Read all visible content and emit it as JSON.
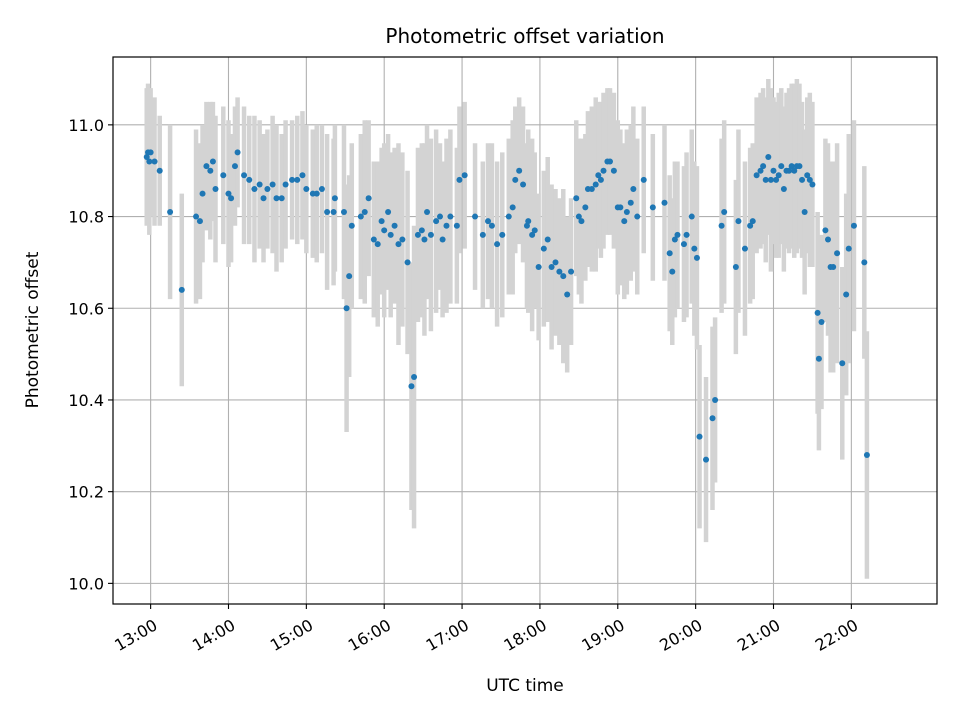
{
  "chart_data": {
    "type": "scatter",
    "title": "Photometric offset variation",
    "xlabel": "UTC time",
    "ylabel": "Photometric offset",
    "grid": true,
    "xlim": [
      "12:31",
      "23:06"
    ],
    "ylim": [
      9.955,
      11.148
    ],
    "x_ticks": [
      "13:00",
      "14:00",
      "15:00",
      "16:00",
      "17:00",
      "18:00",
      "19:00",
      "20:00",
      "21:00",
      "22:00"
    ],
    "y_ticks": [
      "10.0",
      "10.2",
      "10.4",
      "10.6",
      "10.8",
      "11.0"
    ],
    "colors": {
      "points": "#1f77b4",
      "errorbars": "#d3d3d3",
      "grid": "#b0b0b0"
    },
    "series": [
      {
        "points": [
          [
            "12:57",
            10.93,
            0.15
          ],
          [
            "12:58",
            10.94,
            0.15
          ],
          [
            "12:59",
            10.92,
            0.16
          ],
          [
            "13:00",
            10.94,
            0.14
          ],
          [
            "13:03",
            10.92,
            0.14
          ],
          [
            "13:07",
            10.9,
            0.12
          ],
          [
            "13:15",
            10.81,
            0.19
          ],
          [
            "13:24",
            10.64,
            0.21
          ],
          [
            "13:35",
            10.8,
            0.19
          ],
          [
            "13:38",
            10.79,
            0.17
          ],
          [
            "13:40",
            10.85,
            0.15
          ],
          [
            "13:43",
            10.91,
            0.14
          ],
          [
            "13:46",
            10.9,
            0.15
          ],
          [
            "13:48",
            10.92,
            0.13
          ],
          [
            "13:50",
            10.86,
            0.16
          ],
          [
            "13:56",
            10.89,
            0.15
          ],
          [
            "14:00",
            10.85,
            0.16
          ],
          [
            "14:02",
            10.84,
            0.14
          ],
          [
            "14:05",
            10.91,
            0.13
          ],
          [
            "14:07",
            10.94,
            0.12
          ],
          [
            "14:12",
            10.89,
            0.15
          ],
          [
            "14:16",
            10.88,
            0.14
          ],
          [
            "14:20",
            10.86,
            0.16
          ],
          [
            "14:24",
            10.87,
            0.14
          ],
          [
            "14:27",
            10.84,
            0.14
          ],
          [
            "14:30",
            10.86,
            0.13
          ],
          [
            "14:34",
            10.87,
            0.15
          ],
          [
            "14:37",
            10.84,
            0.16
          ],
          [
            "14:41",
            10.84,
            0.14
          ],
          [
            "14:44",
            10.87,
            0.14
          ],
          [
            "14:49",
            10.88,
            0.13
          ],
          [
            "14:53",
            10.88,
            0.14
          ],
          [
            "14:57",
            10.89,
            0.14
          ],
          [
            "15:00",
            10.86,
            0.14
          ],
          [
            "15:05",
            10.85,
            0.14
          ],
          [
            "15:08",
            10.85,
            0.15
          ],
          [
            "15:12",
            10.86,
            0.14
          ],
          [
            "15:16",
            10.81,
            0.17
          ],
          [
            "15:21",
            10.81,
            0.16
          ],
          [
            "15:22",
            10.84,
            0.16
          ],
          [
            "15:29",
            10.81,
            0.19
          ],
          [
            "15:31",
            10.6,
            0.27
          ],
          [
            "15:33",
            10.67,
            0.22
          ],
          [
            "15:35",
            10.78,
            0.18
          ],
          [
            "15:42",
            10.8,
            0.18
          ],
          [
            "15:45",
            10.81,
            0.2
          ],
          [
            "15:48",
            10.84,
            0.17
          ],
          [
            "15:52",
            10.75,
            0.17
          ],
          [
            "15:55",
            10.74,
            0.18
          ],
          [
            "15:58",
            10.79,
            0.16
          ],
          [
            "16:00",
            10.77,
            0.19
          ],
          [
            "16:03",
            10.81,
            0.17
          ],
          [
            "16:05",
            10.76,
            0.18
          ],
          [
            "16:08",
            10.78,
            0.17
          ],
          [
            "16:11",
            10.74,
            0.22
          ],
          [
            "16:14",
            10.75,
            0.19
          ],
          [
            "16:18",
            10.7,
            0.2
          ],
          [
            "16:21",
            10.43,
            0.27
          ],
          [
            "16:23",
            10.45,
            0.33
          ],
          [
            "16:26",
            10.76,
            0.19
          ],
          [
            "16:29",
            10.77,
            0.19
          ],
          [
            "16:31",
            10.75,
            0.21
          ],
          [
            "16:33",
            10.81,
            0.19
          ],
          [
            "16:36",
            10.76,
            0.21
          ],
          [
            "16:40",
            10.79,
            0.2
          ],
          [
            "16:43",
            10.8,
            0.16
          ],
          [
            "16:45",
            10.75,
            0.17
          ],
          [
            "16:48",
            10.78,
            0.19
          ],
          [
            "16:51",
            10.8,
            0.19
          ],
          [
            "16:56",
            10.78,
            0.17
          ],
          [
            "16:58",
            10.88,
            0.16
          ],
          [
            "17:02",
            10.89,
            0.16
          ],
          [
            "17:10",
            10.8,
            0.16
          ],
          [
            "17:16",
            10.76,
            0.16
          ],
          [
            "17:20",
            10.79,
            0.17
          ],
          [
            "17:23",
            10.78,
            0.18
          ],
          [
            "17:27",
            10.74,
            0.18
          ],
          [
            "17:31",
            10.76,
            0.18
          ],
          [
            "17:36",
            10.8,
            0.17
          ],
          [
            "17:39",
            10.82,
            0.19
          ],
          [
            "17:41",
            10.88,
            0.16
          ],
          [
            "17:44",
            10.9,
            0.16
          ],
          [
            "17:47",
            10.87,
            0.17
          ],
          [
            "17:50",
            10.78,
            0.18
          ],
          [
            "17:51",
            10.79,
            0.2
          ],
          [
            "17:54",
            10.76,
            0.21
          ],
          [
            "17:56",
            10.77,
            0.17
          ],
          [
            "17:59",
            10.69,
            0.16
          ],
          [
            "18:03",
            10.73,
            0.17
          ],
          [
            "18:06",
            10.75,
            0.18
          ],
          [
            "18:09",
            10.69,
            0.18
          ],
          [
            "18:12",
            10.7,
            0.16
          ],
          [
            "18:15",
            10.68,
            0.16
          ],
          [
            "18:18",
            10.67,
            0.19
          ],
          [
            "18:21",
            10.63,
            0.17
          ],
          [
            "18:24",
            10.68,
            0.16
          ],
          [
            "18:28",
            10.84,
            0.17
          ],
          [
            "18:30",
            10.8,
            0.17
          ],
          [
            "18:32",
            10.79,
            0.18
          ],
          [
            "18:35",
            10.82,
            0.16
          ],
          [
            "18:37",
            10.86,
            0.17
          ],
          [
            "18:40",
            10.86,
            0.18
          ],
          [
            "18:43",
            10.87,
            0.19
          ],
          [
            "18:45",
            10.89,
            0.16
          ],
          [
            "18:47",
            10.88,
            0.17
          ],
          [
            "18:49",
            10.9,
            0.17
          ],
          [
            "18:52",
            10.92,
            0.16
          ],
          [
            "18:54",
            10.92,
            0.16
          ],
          [
            "18:57",
            10.9,
            0.17
          ],
          [
            "19:00",
            10.82,
            0.19
          ],
          [
            "19:02",
            10.82,
            0.17
          ],
          [
            "19:05",
            10.79,
            0.17
          ],
          [
            "19:07",
            10.81,
            0.18
          ],
          [
            "19:10",
            10.83,
            0.17
          ],
          [
            "19:12",
            10.86,
            0.18
          ],
          [
            "19:15",
            10.8,
            0.17
          ],
          [
            "19:20",
            10.88,
            0.16
          ],
          [
            "19:27",
            10.82,
            0.16
          ],
          [
            "19:36",
            10.83,
            0.17
          ],
          [
            "19:40",
            10.72,
            0.17
          ],
          [
            "19:42",
            10.68,
            0.16
          ],
          [
            "19:44",
            10.75,
            0.17
          ],
          [
            "19:46",
            10.76,
            0.16
          ],
          [
            "19:51",
            10.74,
            0.17
          ],
          [
            "19:53",
            10.76,
            0.18
          ],
          [
            "19:57",
            10.8,
            0.19
          ],
          [
            "19:59",
            10.73,
            0.19
          ],
          [
            "20:01",
            10.71,
            0.2
          ],
          [
            "20:03",
            10.32,
            0.2
          ],
          [
            "20:08",
            10.27,
            0.18
          ],
          [
            "20:13",
            10.36,
            0.2
          ],
          [
            "20:15",
            10.4,
            0.18
          ],
          [
            "20:20",
            10.78,
            0.19
          ],
          [
            "20:22",
            10.81,
            0.2
          ],
          [
            "20:31",
            10.69,
            0.19
          ],
          [
            "20:33",
            10.79,
            0.2
          ],
          [
            "20:38",
            10.73,
            0.19
          ],
          [
            "20:42",
            10.78,
            0.17
          ],
          [
            "20:44",
            10.79,
            0.17
          ],
          [
            "20:47",
            10.89,
            0.17
          ],
          [
            "20:50",
            10.9,
            0.17
          ],
          [
            "20:52",
            10.91,
            0.17
          ],
          [
            "20:54",
            10.88,
            0.18
          ],
          [
            "20:56",
            10.93,
            0.17
          ],
          [
            "20:58",
            10.88,
            0.2
          ],
          [
            "21:00",
            10.9,
            0.16
          ],
          [
            "21:02",
            10.88,
            0.17
          ],
          [
            "21:04",
            10.89,
            0.18
          ],
          [
            "21:06",
            10.91,
            0.17
          ],
          [
            "21:08",
            10.86,
            0.18
          ],
          [
            "21:10",
            10.9,
            0.17
          ],
          [
            "21:12",
            10.9,
            0.18
          ],
          [
            "21:14",
            10.91,
            0.18
          ],
          [
            "21:16",
            10.9,
            0.19
          ],
          [
            "21:18",
            10.91,
            0.19
          ],
          [
            "21:20",
            10.91,
            0.18
          ],
          [
            "21:22",
            10.88,
            0.17
          ],
          [
            "21:24",
            10.81,
            0.18
          ],
          [
            "21:26",
            10.89,
            0.17
          ],
          [
            "21:28",
            10.88,
            0.19
          ],
          [
            "21:30",
            10.87,
            0.18
          ],
          [
            "21:34",
            10.59,
            0.22
          ],
          [
            "21:35",
            10.49,
            0.2
          ],
          [
            "21:37",
            10.57,
            0.19
          ],
          [
            "21:40",
            10.77,
            0.2
          ],
          [
            "21:42",
            10.75,
            0.21
          ],
          [
            "21:44",
            10.69,
            0.23
          ],
          [
            "21:46",
            10.69,
            0.23
          ],
          [
            "21:49",
            10.72,
            0.24
          ],
          [
            "21:53",
            10.48,
            0.21
          ],
          [
            "21:56",
            10.63,
            0.22
          ],
          [
            "21:58",
            10.73,
            0.25
          ],
          [
            "22:02",
            10.78,
            0.23
          ],
          [
            "22:10",
            10.7,
            0.21
          ],
          [
            "22:12",
            10.28,
            0.27
          ]
        ]
      }
    ]
  }
}
